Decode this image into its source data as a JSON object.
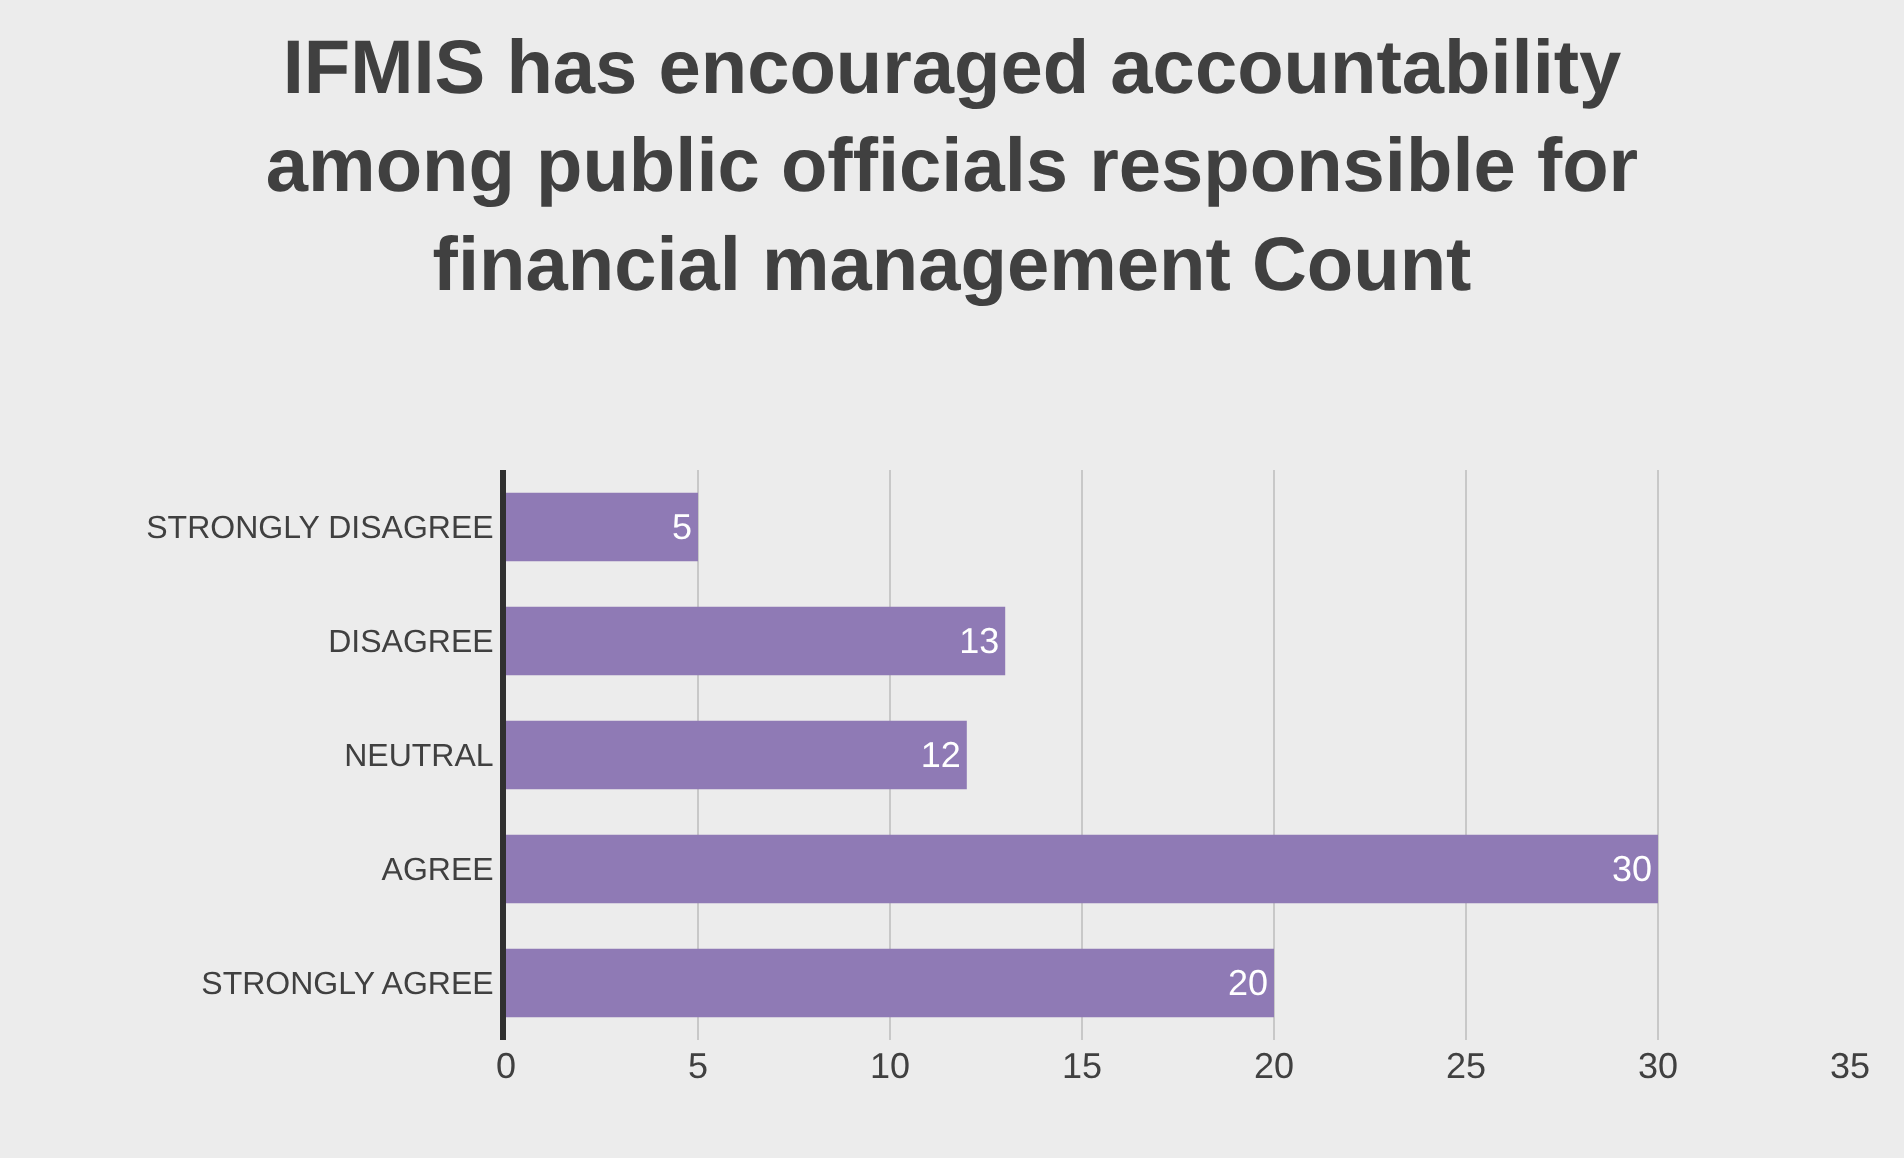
{
  "chart_data": {
    "type": "bar",
    "orientation": "horizontal",
    "title": "IFMIS has encouraged accountability among public officials responsible for financial management Count",
    "categories": [
      "STRONGLY DISAGREE",
      "DISAGREE",
      "NEUTRAL",
      "AGREE",
      "STRONGLY AGREE"
    ],
    "values": [
      5,
      13,
      12,
      30,
      20
    ],
    "color": "#8f7ab5",
    "xlim": [
      0,
      35
    ],
    "xticks": [
      0,
      5,
      10,
      15,
      20,
      25,
      30,
      35
    ],
    "grid": "x",
    "data_labels": true,
    "legend": false
  }
}
